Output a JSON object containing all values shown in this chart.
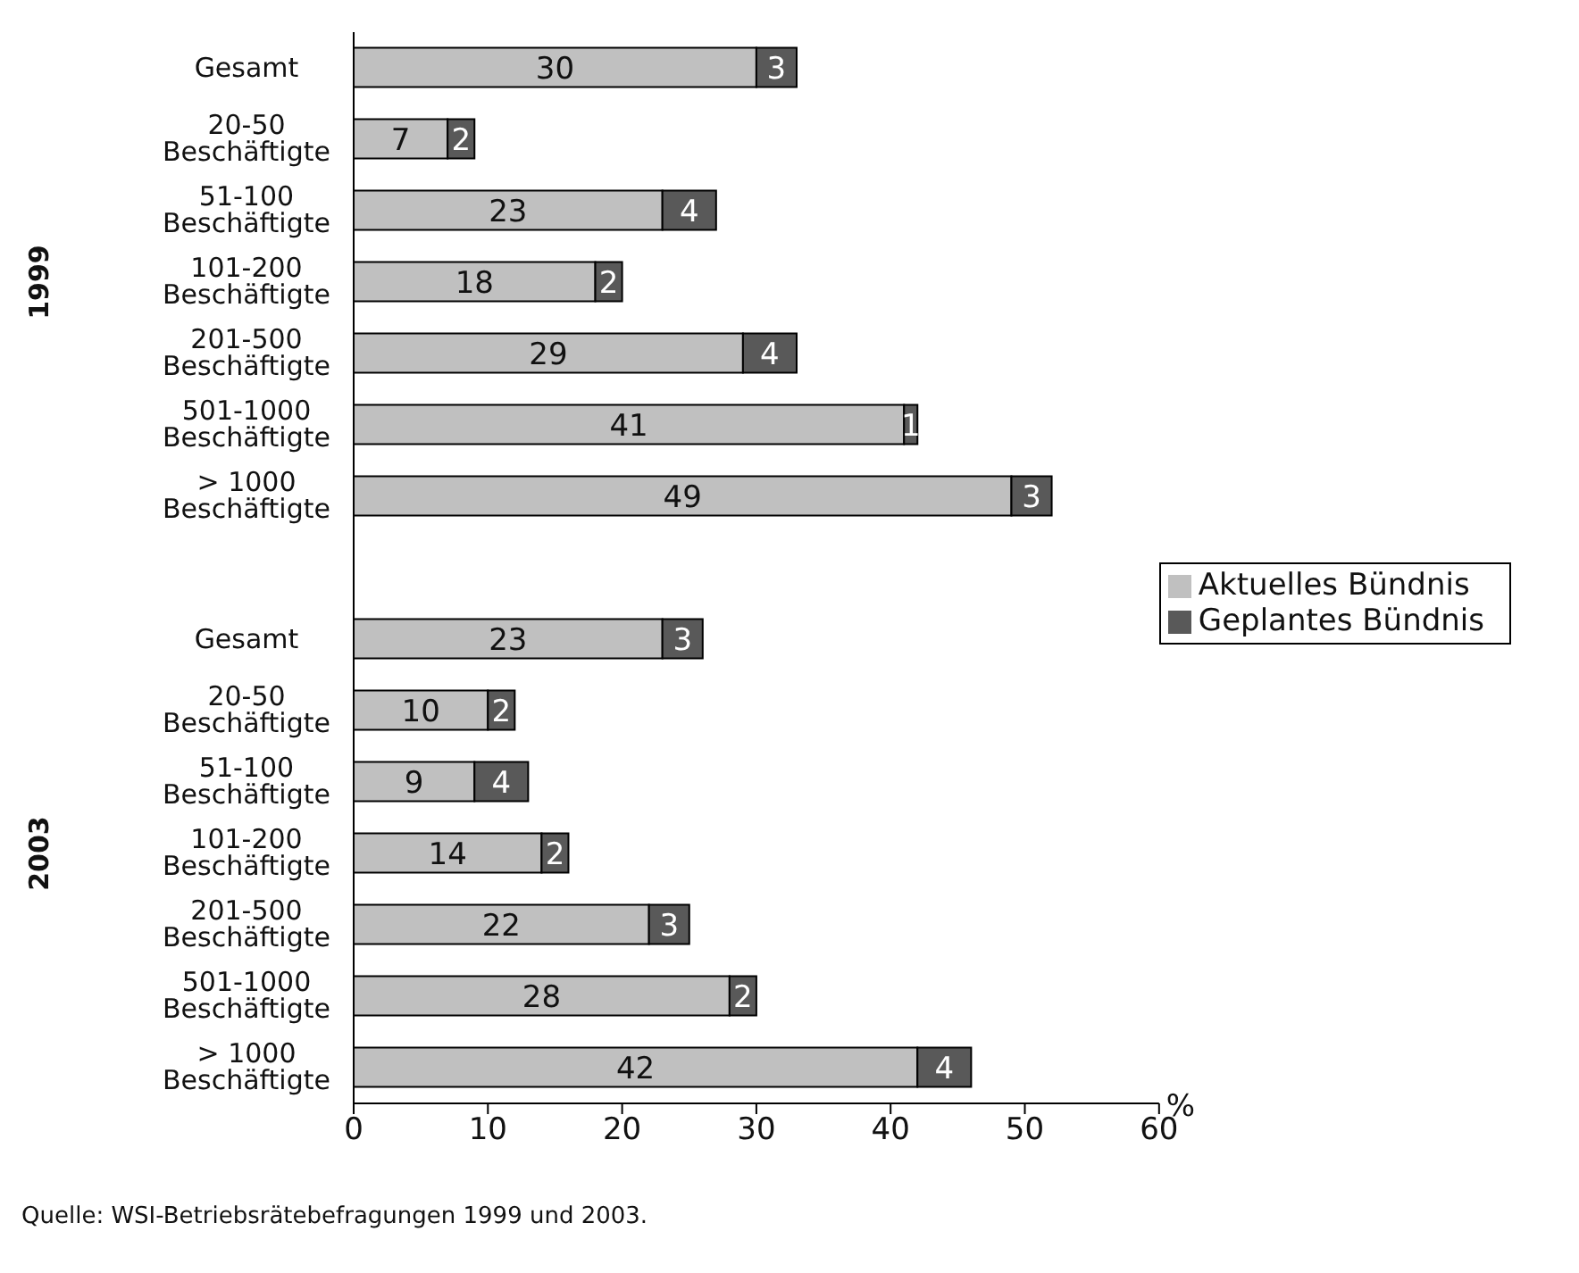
{
  "chart_data": {
    "type": "bar",
    "orientation": "horizontal",
    "stacked": true,
    "xlabel": "%",
    "categories": [
      "Gesamt",
      "20-50 Beschäftigte",
      "51-100 Beschäftigte",
      "101-200 Beschäftigte",
      "201-500 Beschäftigte",
      "501-1000 Beschäftigte",
      "> 1000 Beschäftigte",
      null,
      "Gesamt",
      "20-50 Beschäftigte",
      "51-100 Beschäftigte",
      "101-200 Beschäftigte",
      "201-500 Beschäftigte",
      "501-1000 Beschäftigte",
      "> 1000 Beschäftigte"
    ],
    "series": [
      {
        "name": "Aktuelles Bündnis",
        "color": "#c0c0c0",
        "values": [
          30,
          7,
          23,
          18,
          29,
          41,
          49,
          null,
          23,
          10,
          9,
          14,
          22,
          28,
          42
        ]
      },
      {
        "name": "Geplantes Bündnis",
        "color": "#595959",
        "values": [
          3,
          2,
          4,
          2,
          4,
          1,
          3,
          null,
          3,
          2,
          4,
          2,
          3,
          2,
          4
        ]
      }
    ],
    "xlim": [
      0,
      60
    ],
    "xticks": [
      0,
      10,
      20,
      30,
      40,
      50,
      60
    ],
    "data_labels": true,
    "legend": "right",
    "grid": false,
    "annotations": [
      "1999",
      "2003",
      "Quelle: WSI-Betriebsrätebefragungen 1999 und 2003."
    ]
  }
}
